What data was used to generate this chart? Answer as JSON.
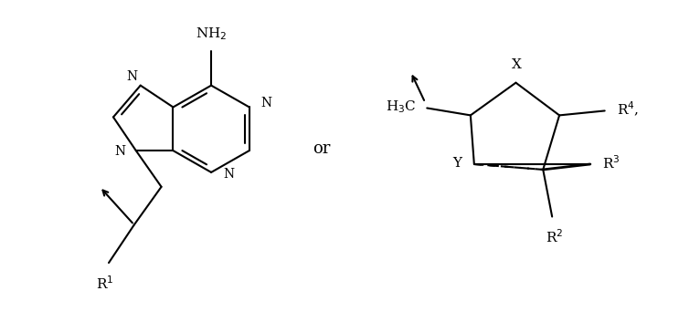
{
  "background": "#ffffff",
  "line_color": "#000000",
  "line_width": 1.5,
  "font_size": 11,
  "or_text": "or",
  "or_fontsize": 13,
  "nh2_label": "NH$_2$",
  "r1_label": "R$^1$",
  "r2_label": "R$^2$",
  "r3_label": "R$^3$",
  "r4_label": "R$^4$,",
  "h3c_label": "H$_3$C",
  "x_label": "X",
  "y_label": "Y",
  "n_label": "N"
}
